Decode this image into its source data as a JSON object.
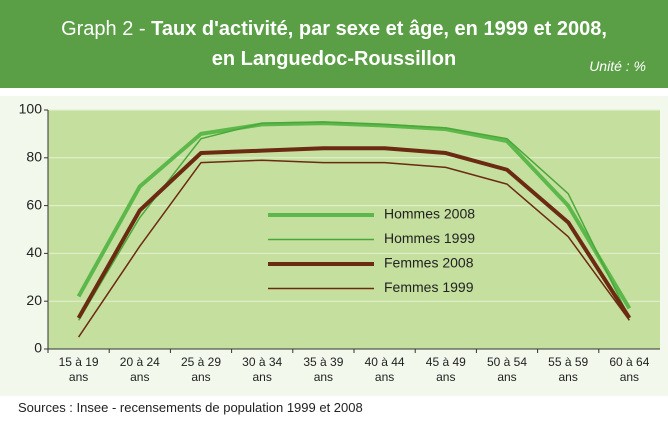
{
  "chart_data": {
    "type": "line",
    "title_prefix": "Graph 2 -",
    "title": [
      "Taux d'activité, par sexe et âge, en 1999 et 2008,",
      "en Languedoc-Roussillon"
    ],
    "unit": "Unité : %",
    "source": "Sources : Insee - recensements de population 1999 et 2008",
    "categories": [
      "15 à 19 ans",
      "20 à 24 ans",
      "25 à 29 ans",
      "30 à 34 ans",
      "35 à 39 ans",
      "40 à 44 ans",
      "45 à 49 ans",
      "50 à 54 ans",
      "55 à 59 ans",
      "60 à 64 ans"
    ],
    "series": [
      {
        "name": "Hommes 2008",
        "color": "#5cb84a",
        "width": 4,
        "values": [
          22,
          68,
          90,
          94,
          94.5,
          93.5,
          92,
          87,
          60,
          17
        ]
      },
      {
        "name": "Hommes 1999",
        "color": "#4aa83a",
        "width": 1.5,
        "values": [
          12,
          55,
          88,
          94.5,
          95,
          94,
          92.5,
          88,
          65,
          13
        ]
      },
      {
        "name": "Femmes 2008",
        "color": "#6b2a12",
        "width": 4,
        "values": [
          13,
          58,
          82,
          83,
          84,
          84,
          82,
          75,
          53,
          13
        ]
      },
      {
        "name": "Femmes 1999",
        "color": "#6b2a12",
        "width": 1.5,
        "values": [
          5,
          43,
          78,
          79,
          78,
          78,
          76,
          69,
          47,
          12
        ]
      }
    ],
    "ylim": [
      0,
      100
    ],
    "yticks": [
      0,
      20,
      40,
      60,
      80,
      100
    ],
    "grid": true,
    "legend": "center"
  }
}
